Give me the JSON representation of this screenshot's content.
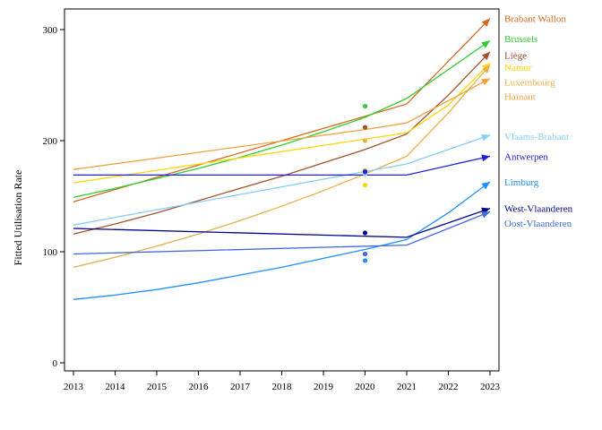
{
  "chart_data": {
    "type": "line",
    "title": "",
    "xlabel": "",
    "ylabel": "Fitted Utilisation Rate",
    "xlim": [
      2013,
      2023
    ],
    "ylim": [
      0,
      320
    ],
    "x_ticks": [
      "2013",
      "2014",
      "2015",
      "2016",
      "2017",
      "2018",
      "2019",
      "2020",
      "2021",
      "2022",
      "2023"
    ],
    "y_ticks": [
      "0",
      "100",
      "200",
      "300"
    ],
    "grid": false,
    "legend": "right (inline labels at line ends)",
    "series": [
      {
        "name": "Brabant Wallon",
        "color": "#d2691e",
        "points": [
          [
            2013,
            145
          ],
          [
            2021,
            233
          ],
          [
            2023,
            310
          ]
        ],
        "marker": [
          2020,
          171
        ]
      },
      {
        "name": "Brussels",
        "color": "#32cd32",
        "points": [
          [
            2013,
            149
          ],
          [
            2014,
            157
          ],
          [
            2015,
            166
          ],
          [
            2016,
            175
          ],
          [
            2017,
            185
          ],
          [
            2018,
            196
          ],
          [
            2019,
            208
          ],
          [
            2020,
            221
          ],
          [
            2021,
            238
          ],
          [
            2022,
            264
          ],
          [
            2023,
            290
          ]
        ],
        "marker": [
          2020,
          231
        ]
      },
      {
        "name": "Liège",
        "color": "#a0522d",
        "points": [
          [
            2013,
            116
          ],
          [
            2014,
            125
          ],
          [
            2015,
            135
          ],
          [
            2016,
            146
          ],
          [
            2017,
            157
          ],
          [
            2018,
            168
          ],
          [
            2019,
            180
          ],
          [
            2020,
            192
          ],
          [
            2021,
            206
          ],
          [
            2022,
            241
          ],
          [
            2023,
            280
          ]
        ],
        "marker": [
          2020,
          212
        ]
      },
      {
        "name": "Namur",
        "color": "#ffd700",
        "points": [
          [
            2013,
            162
          ],
          [
            2021,
            207
          ],
          [
            2022,
            232
          ],
          [
            2023,
            270
          ]
        ],
        "marker": [
          2020,
          160
        ]
      },
      {
        "name": "Luxembourg",
        "color": "#e8b04b",
        "points": [
          [
            2013,
            86
          ],
          [
            2014,
            95
          ],
          [
            2015,
            105
          ],
          [
            2016,
            116
          ],
          [
            2017,
            128
          ],
          [
            2018,
            141
          ],
          [
            2019,
            155
          ],
          [
            2020,
            170
          ],
          [
            2021,
            186
          ],
          [
            2022,
            225
          ],
          [
            2023,
            268
          ]
        ],
        "marker": [
          2020,
          200
        ]
      },
      {
        "name": "Hainaut",
        "color": "#f4a040",
        "points": [
          [
            2013,
            174
          ],
          [
            2020,
            210
          ],
          [
            2021,
            216
          ],
          [
            2023,
            256
          ]
        ],
        "marker": [
          2020,
          173
        ]
      },
      {
        "name": "Vlaams-Brabant",
        "color": "#87cefa",
        "points": [
          [
            2013,
            124
          ],
          [
            2021,
            179
          ],
          [
            2023,
            205
          ]
        ],
        "marker": [
          2020,
          170
        ]
      },
      {
        "name": "Antwerpen",
        "color": "#2020e0",
        "points": [
          [
            2013,
            169
          ],
          [
            2021,
            169
          ],
          [
            2023,
            186
          ]
        ],
        "marker": [
          2020,
          172
        ]
      },
      {
        "name": "Limburg",
        "color": "#1e90ff",
        "points": [
          [
            2013,
            57
          ],
          [
            2014,
            61
          ],
          [
            2015,
            66
          ],
          [
            2016,
            72
          ],
          [
            2017,
            79
          ],
          [
            2018,
            86
          ],
          [
            2019,
            94
          ],
          [
            2020,
            102
          ],
          [
            2021,
            111
          ],
          [
            2022,
            135
          ],
          [
            2023,
            163
          ]
        ],
        "marker": [
          2020,
          92
        ]
      },
      {
        "name": "West-Vlaanderen",
        "color": "#00008b",
        "points": [
          [
            2013,
            121
          ],
          [
            2021,
            113
          ],
          [
            2023,
            139
          ]
        ],
        "marker": [
          2020,
          117
        ]
      },
      {
        "name": "Oost-Vlaanderen",
        "color": "#4169e1",
        "points": [
          [
            2013,
            98
          ],
          [
            2021,
            106
          ],
          [
            2023,
            136
          ]
        ],
        "marker": [
          2020,
          98
        ]
      }
    ],
    "label_y_values": [
      310,
      292,
      277,
      266,
      253,
      240,
      204,
      186,
      163,
      139,
      126
    ]
  }
}
